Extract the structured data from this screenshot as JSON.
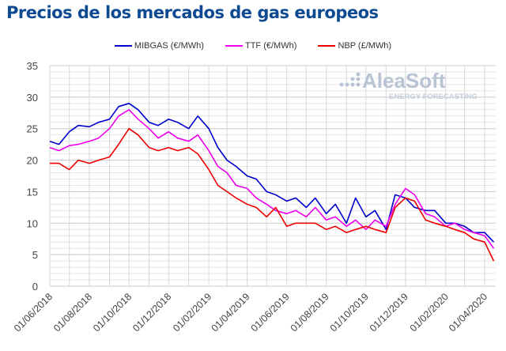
{
  "title": "Precios de los mercados de gas europeos",
  "logo": {
    "name": "AleaSoft",
    "tagline": "ENERGY FORECASTING"
  },
  "chart_data": {
    "type": "line",
    "title": "Precios de los mercados de gas europeos",
    "xlabel": "",
    "ylabel": "",
    "ylim": [
      0,
      35
    ],
    "yticks": [
      0,
      5,
      10,
      15,
      20,
      25,
      30,
      35
    ],
    "xlim": [
      "2018-06-01",
      "2020-04-18"
    ],
    "xticks": [
      "01/06/2018",
      "01/08/2018",
      "01/10/2018",
      "01/12/2018",
      "01/02/2019",
      "01/04/2019",
      "01/06/2019",
      "01/08/2019",
      "01/10/2019",
      "01/12/2019",
      "01/02/2020",
      "01/04/2020"
    ],
    "grid": true,
    "legend_position": "top",
    "x": [
      "2018-06-01",
      "2018-06-15",
      "2018-07-01",
      "2018-07-15",
      "2018-08-01",
      "2018-08-15",
      "2018-09-01",
      "2018-09-15",
      "2018-10-01",
      "2018-10-15",
      "2018-11-01",
      "2018-11-15",
      "2018-12-01",
      "2018-12-15",
      "2019-01-01",
      "2019-01-15",
      "2019-02-01",
      "2019-02-15",
      "2019-03-01",
      "2019-03-15",
      "2019-04-01",
      "2019-04-15",
      "2019-05-01",
      "2019-05-15",
      "2019-06-01",
      "2019-06-15",
      "2019-07-01",
      "2019-07-15",
      "2019-08-01",
      "2019-08-15",
      "2019-09-01",
      "2019-09-15",
      "2019-10-01",
      "2019-10-15",
      "2019-11-01",
      "2019-11-15",
      "2019-12-01",
      "2019-12-15",
      "2020-01-01",
      "2020-01-15",
      "2020-02-01",
      "2020-02-15",
      "2020-03-01",
      "2020-03-15",
      "2020-04-01",
      "2020-04-15"
    ],
    "series": [
      {
        "name": "MIBGAS (€/MWh)",
        "color": "#0000cc",
        "values": [
          23,
          22.5,
          24.5,
          25.5,
          25.3,
          26,
          26.5,
          28.5,
          29,
          28,
          26,
          25.5,
          26.5,
          26,
          25,
          27,
          25,
          22,
          20,
          19,
          17.5,
          17,
          15,
          14.5,
          13.5,
          14,
          12.5,
          14,
          11.5,
          13,
          10,
          14,
          11,
          12,
          9,
          14.5,
          14,
          12.5,
          12,
          12,
          10,
          10,
          9.5,
          8.5,
          8.5,
          7
        ]
      },
      {
        "name": "TTF (€/MWh)",
        "color": "#ee00ee",
        "values": [
          22,
          21.5,
          22.3,
          22.5,
          23,
          23.5,
          25,
          27,
          28,
          26.5,
          25,
          23.5,
          24.5,
          23.5,
          23,
          24,
          21.5,
          19,
          18,
          16,
          15.5,
          14,
          13,
          12,
          11.5,
          12,
          11,
          12.5,
          10.5,
          11,
          9.5,
          10.5,
          9,
          10.5,
          9.5,
          13,
          15.5,
          14.5,
          11.5,
          11,
          9.5,
          10,
          9,
          8.5,
          8,
          6
        ]
      },
      {
        "name": "NBP (£/MWh)",
        "color": "#ee0000",
        "values": [
          19.5,
          19.5,
          18.5,
          20,
          19.5,
          20,
          20.5,
          22.5,
          25,
          24,
          22,
          21.5,
          22,
          21.5,
          22,
          21,
          18.5,
          16,
          15,
          14,
          13,
          12.5,
          11,
          12.5,
          9.5,
          10,
          10,
          10,
          9,
          9.5,
          8.5,
          9,
          9.5,
          9,
          8.5,
          12.5,
          14,
          13.5,
          10.5,
          10,
          9.5,
          9,
          8.5,
          7.5,
          7,
          4
        ]
      }
    ]
  }
}
